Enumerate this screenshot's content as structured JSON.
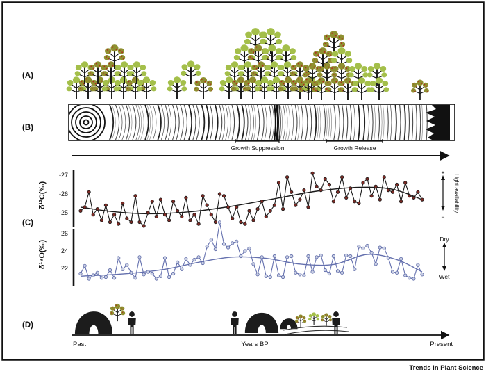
{
  "figure": {
    "panel_labels": {
      "a": "(A)",
      "b": "(B)",
      "c": "(C)",
      "d": "(D)"
    },
    "journal": "Trends in Plant Science"
  },
  "colors": {
    "frame": "#111111",
    "tree_green": "#a4bf4a",
    "tree_olive": "#8e9030",
    "tree_fruit_dot": "#b03020",
    "trunk": "#161616",
    "c13_line": "#1a1a1a",
    "c13_marker_fill": "#7c2a24",
    "c18_line": "#6470ae",
    "c18_marker_fill": "#c9cfe4",
    "ring_dark_band": "#111111"
  },
  "panel_a": {
    "tree_types": {
      "g": "green-canopy-tree",
      "f": "fruiting-olive-tree"
    },
    "trees": [
      [
        110,
        143,
        0.8,
        "g"
      ],
      [
        127,
        143,
        0.8,
        "f"
      ],
      [
        144,
        143,
        0.8,
        "f"
      ],
      [
        161,
        143,
        0.8,
        "g"
      ],
      [
        178,
        143,
        0.8,
        "g"
      ],
      [
        195,
        143,
        0.8,
        "f"
      ],
      [
        211,
        143,
        0.8,
        "g"
      ],
      [
        122,
        121,
        0.8,
        "g"
      ],
      [
        141,
        121,
        0.8,
        "f"
      ],
      [
        160,
        121,
        0.8,
        "f"
      ],
      [
        179,
        121,
        0.8,
        "g"
      ],
      [
        197,
        121,
        0.8,
        "g"
      ],
      [
        165,
        99,
        0.85,
        "f"
      ],
      [
        255,
        143,
        0.8,
        "g"
      ],
      [
        275,
        121,
        0.82,
        "g"
      ],
      [
        293,
        143,
        0.78,
        "f"
      ],
      [
        368,
        77,
        0.9,
        "g"
      ],
      [
        390,
        77,
        0.9,
        "g"
      ],
      [
        352,
        99,
        0.85,
        "g"
      ],
      [
        372,
        99,
        0.85,
        "f"
      ],
      [
        392,
        99,
        0.85,
        "g"
      ],
      [
        412,
        99,
        0.85,
        "g"
      ],
      [
        338,
        121,
        0.8,
        "g"
      ],
      [
        357,
        121,
        0.8,
        "g"
      ],
      [
        376,
        121,
        0.8,
        "f"
      ],
      [
        395,
        121,
        0.8,
        "g"
      ],
      [
        414,
        121,
        0.8,
        "g"
      ],
      [
        432,
        121,
        0.8,
        "f"
      ],
      [
        330,
        143,
        0.8,
        "g"
      ],
      [
        347,
        143,
        0.8,
        "f"
      ],
      [
        364,
        143,
        0.8,
        "f"
      ],
      [
        381,
        143,
        0.8,
        "g"
      ],
      [
        398,
        143,
        0.8,
        "g"
      ],
      [
        415,
        143,
        0.8,
        "f"
      ],
      [
        432,
        143,
        0.8,
        "f"
      ],
      [
        449,
        143,
        0.8,
        "g"
      ],
      [
        481,
        81,
        0.9,
        "f"
      ],
      [
        465,
        103,
        0.85,
        "f"
      ],
      [
        492,
        103,
        0.85,
        "g"
      ],
      [
        450,
        123,
        0.8,
        "f"
      ],
      [
        471,
        123,
        0.8,
        "f"
      ],
      [
        492,
        123,
        0.8,
        "f"
      ],
      [
        516,
        123,
        0.8,
        "g"
      ],
      [
        543,
        123,
        0.8,
        "g"
      ],
      [
        444,
        144,
        0.8,
        "f"
      ],
      [
        463,
        144,
        0.8,
        "f"
      ],
      [
        482,
        144,
        0.8,
        "f"
      ],
      [
        501,
        144,
        0.8,
        "f"
      ],
      [
        521,
        144,
        0.8,
        "g"
      ],
      [
        546,
        144,
        0.8,
        "g"
      ],
      [
        605,
        144,
        0.72,
        "f"
      ]
    ]
  },
  "panel_b": {
    "growth_suppression_label": "Growth Suppression",
    "growth_release_label": "Growth Release"
  },
  "chart_data": [
    {
      "type": "line",
      "name": "delta13C",
      "ylabel": "δ¹³C(‰)",
      "yticks": [
        -27,
        -26,
        -25
      ],
      "axis_inverted": true,
      "legend_position": "right",
      "right_annotation": {
        "top": "+",
        "bottom": "−",
        "label": "Light availability"
      },
      "values": [
        -25.1,
        -25.3,
        -26.1,
        -24.9,
        -25.2,
        -24.6,
        -25.4,
        -24.5,
        -24.9,
        -24.4,
        -25.5,
        -24.7,
        -24.5,
        -25.9,
        -24.5,
        -24.3,
        -25.0,
        -25.6,
        -24.8,
        -25.7,
        -24.9,
        -24.6,
        -25.6,
        -25.1,
        -24.8,
        -25.8,
        -24.6,
        -24.9,
        -24.4,
        -25.9,
        -25.4,
        -24.9,
        -24.5,
        -26.0,
        -25.9,
        -25.3,
        -24.7,
        -25.3,
        -24.5,
        -24.4,
        -25.1,
        -24.6,
        -25.2,
        -25.6,
        -24.8,
        -25.1,
        -25.4,
        -26.6,
        -25.2,
        -26.9,
        -26.1,
        -25.4,
        -25.7,
        -26.2,
        -25.3,
        -27.1,
        -26.4,
        -26.2,
        -26.8,
        -26.5,
        -25.6,
        -26.1,
        -26.9,
        -25.8,
        -26.3,
        -25.6,
        -25.5,
        -26.6,
        -26.8,
        -25.9,
        -26.4,
        -25.7,
        -26.9,
        -26.2,
        -26.1,
        -26.5,
        -25.6,
        -26.6,
        -25.9,
        -25.8,
        -26.1,
        -25.7
      ],
      "trend": [
        [
          0,
          -25.3
        ],
        [
          8,
          -25.05
        ],
        [
          16,
          -24.95
        ],
        [
          26,
          -25.05
        ],
        [
          36,
          -25.35
        ],
        [
          46,
          -25.75
        ],
        [
          56,
          -26.15
        ],
        [
          66,
          -26.35
        ],
        [
          74,
          -26.25
        ],
        [
          81,
          -25.7
        ]
      ]
    },
    {
      "type": "line",
      "name": "delta18O",
      "ylabel": "δ¹⁸O(‰)",
      "yticks": [
        26,
        24,
        22
      ],
      "axis_inverted": false,
      "right_annotation": {
        "top": "Dry",
        "bottom": "Wet"
      },
      "values": [
        21.4,
        22.3,
        20.8,
        21.2,
        21.5,
        20.9,
        21.0,
        21.8,
        20.9,
        23.2,
        21.9,
        22.4,
        21.5,
        20.9,
        23.3,
        21.3,
        21.6,
        21.4,
        20.8,
        21.1,
        23.2,
        21.0,
        21.4,
        22.7,
        21.9,
        23.1,
        22.4,
        23.0,
        23.3,
        22.6,
        24.5,
        25.3,
        24.2,
        27.3,
        24.8,
        24.4,
        24.9,
        25.1,
        23.4,
        24.0,
        24.3,
        22.5,
        21.3,
        23.3,
        21.1,
        21.0,
        23.4,
        21.2,
        21.0,
        23.3,
        23.4,
        21.5,
        21.3,
        21.2,
        23.4,
        21.6,
        23.3,
        23.5,
        21.8,
        21.4,
        23.4,
        21.7,
        21.5,
        23.5,
        23.4,
        21.9,
        24.5,
        24.3,
        24.6,
        23.8,
        22.5,
        24.4,
        24.3,
        23.2,
        21.6,
        21.5,
        23.1,
        21.2,
        20.9,
        20.8,
        22.4,
        21.3
      ],
      "trend": [
        [
          0,
          21.1
        ],
        [
          10,
          21.35
        ],
        [
          20,
          21.9
        ],
        [
          28,
          22.7
        ],
        [
          36,
          23.3
        ],
        [
          44,
          23.15
        ],
        [
          52,
          22.5
        ],
        [
          60,
          22.45
        ],
        [
          68,
          23.6
        ],
        [
          75,
          23.0
        ],
        [
          81,
          21.6
        ]
      ]
    }
  ],
  "panel_d": {
    "past": "Past",
    "years_bp": "Years BP",
    "present": "Present"
  }
}
